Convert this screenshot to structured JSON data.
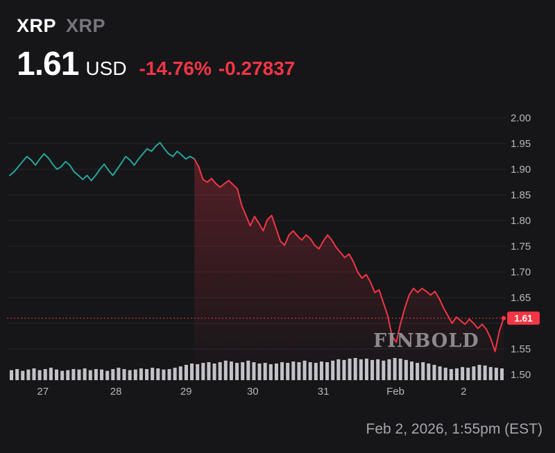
{
  "header": {
    "symbol": "XRP",
    "symbol_secondary": "XRP",
    "price": "1.61",
    "currency": "USD",
    "change_percent": "-14.76%",
    "change_abs": "-0.27837"
  },
  "watermark": "FINBOLD",
  "footer": {
    "timestamp": "Feb 2, 2026, 1:55pm (EST)"
  },
  "colors": {
    "background": "#161619",
    "up": "#26a69a",
    "down": "#f23645",
    "volume": "#d1d1d6",
    "grid": "#27272b",
    "axis_text": "#b6b6bb",
    "badge_text": "#ffffff"
  },
  "chart_data": {
    "type": "line",
    "title": "XRP/USD price chart",
    "ylim": [
      1.5,
      2.0
    ],
    "current_price": 1.61,
    "current_price_label": "1.61",
    "teal_count": 44,
    "y_ticks": [
      {
        "v": 2.0,
        "label": "2.00"
      },
      {
        "v": 1.95,
        "label": "1.95"
      },
      {
        "v": 1.9,
        "label": "1.90"
      },
      {
        "v": 1.85,
        "label": "1.85"
      },
      {
        "v": 1.8,
        "label": "1.80"
      },
      {
        "v": 1.75,
        "label": "1.75"
      },
      {
        "v": 1.7,
        "label": "1.70"
      },
      {
        "v": 1.65,
        "label": ""
      },
      {
        "v": 1.6,
        "label": ""
      },
      {
        "v": 1.55,
        "label": "1.55"
      },
      {
        "v": 1.5,
        "label": "1.50"
      }
    ],
    "y_tick_extra": {
      "v": 1.65,
      "label": "1.65"
    },
    "x_ticks": [
      {
        "pos": 0.067,
        "label": "27"
      },
      {
        "pos": 0.215,
        "label": "28"
      },
      {
        "pos": 0.357,
        "label": "29"
      },
      {
        "pos": 0.492,
        "label": "30"
      },
      {
        "pos": 0.635,
        "label": "31"
      },
      {
        "pos": 0.781,
        "label": "Feb"
      },
      {
        "pos": 0.919,
        "label": "2"
      }
    ],
    "prices": [
      1.888,
      1.895,
      1.905,
      1.915,
      1.925,
      1.918,
      1.908,
      1.92,
      1.93,
      1.922,
      1.91,
      1.9,
      1.905,
      1.915,
      1.908,
      1.895,
      1.888,
      1.88,
      1.888,
      1.878,
      1.888,
      1.9,
      1.91,
      1.898,
      1.888,
      1.9,
      1.912,
      1.925,
      1.918,
      1.908,
      1.92,
      1.93,
      1.94,
      1.935,
      1.945,
      1.952,
      1.94,
      1.93,
      1.925,
      1.935,
      1.928,
      1.92,
      1.925,
      1.92,
      1.905,
      1.88,
      1.875,
      1.882,
      1.872,
      1.865,
      1.872,
      1.878,
      1.87,
      1.862,
      1.83,
      1.81,
      1.79,
      1.808,
      1.795,
      1.78,
      1.802,
      1.81,
      1.785,
      1.76,
      1.752,
      1.772,
      1.78,
      1.77,
      1.762,
      1.772,
      1.765,
      1.752,
      1.745,
      1.76,
      1.772,
      1.762,
      1.748,
      1.738,
      1.728,
      1.735,
      1.72,
      1.7,
      1.688,
      1.695,
      1.68,
      1.66,
      1.665,
      1.64,
      1.615,
      1.575,
      1.563,
      1.6,
      1.63,
      1.655,
      1.668,
      1.66,
      1.668,
      1.662,
      1.655,
      1.662,
      1.648,
      1.63,
      1.615,
      1.6,
      1.612,
      1.605,
      1.598,
      1.608,
      1.6,
      1.59,
      1.598,
      1.588,
      1.57,
      1.545,
      1.585,
      1.61
    ],
    "volume": [
      0.45,
      0.5,
      0.42,
      0.48,
      0.53,
      0.45,
      0.5,
      0.56,
      0.48,
      0.42,
      0.45,
      0.5,
      0.48,
      0.53,
      0.45,
      0.5,
      0.48,
      0.42,
      0.5,
      0.56,
      0.5,
      0.45,
      0.48,
      0.53,
      0.5,
      0.56,
      0.53,
      0.48,
      0.5,
      0.56,
      0.62,
      0.69,
      0.75,
      0.72,
      0.78,
      0.81,
      0.75,
      0.81,
      0.88,
      0.84,
      0.78,
      0.81,
      0.88,
      0.81,
      0.75,
      0.78,
      0.72,
      0.75,
      0.81,
      0.78,
      0.84,
      0.81,
      0.88,
      0.81,
      0.78,
      0.84,
      0.81,
      0.88,
      0.94,
      0.91,
      0.97,
      1.0,
      0.94,
      0.97,
      0.91,
      0.94,
      0.88,
      0.94,
      1.0,
      0.97,
      0.91,
      0.84,
      0.78,
      0.81,
      0.75,
      0.69,
      0.62,
      0.56,
      0.5,
      0.53,
      0.59,
      0.56,
      0.62,
      0.69,
      0.66,
      0.59,
      0.56,
      0.53
    ]
  }
}
